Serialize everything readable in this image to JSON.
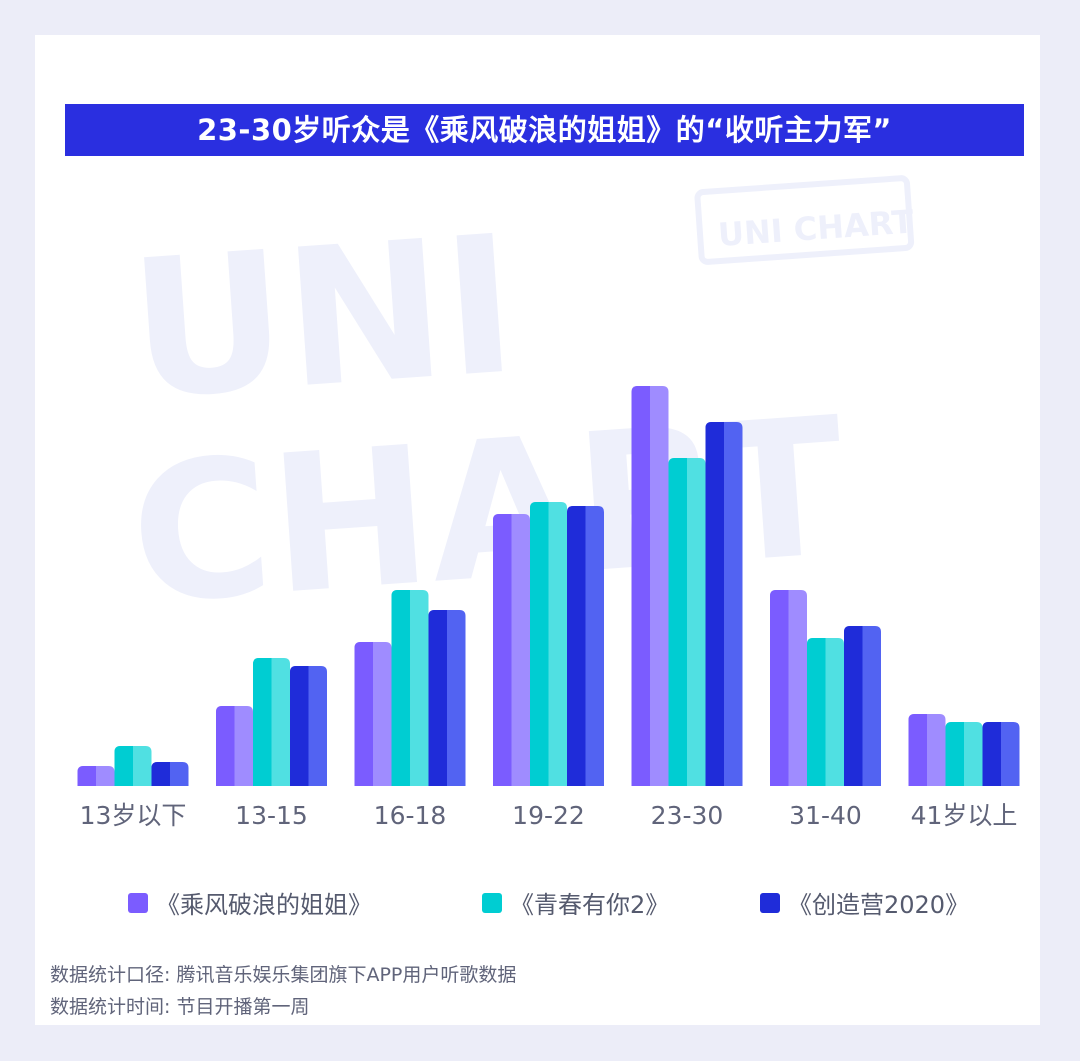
{
  "title": "23-30岁听众是《乘风破浪的姐姐》的“收听主力军”",
  "watermark": {
    "line1": "UNI",
    "line2": "CHART",
    "stamp": "UNI CHART"
  },
  "notes": [
    "数据统计口径: 腾讯音乐娱乐集团旗下APP用户听歌数据",
    "数据统计时间: 节目开播第一周"
  ],
  "colors": {
    "accent": "#2a2fe0"
  },
  "chart_data": {
    "type": "bar",
    "title": "23-30岁听众是《乘风破浪的姐姐》的“收听主力军”",
    "xlabel": "",
    "ylabel": "",
    "ylim": [
      0,
      100
    ],
    "grid": false,
    "legend_position": "bottom",
    "categories": [
      "13岁以下",
      "13-15",
      "16-18",
      "19-22",
      "23-30",
      "31-40",
      "41岁以上"
    ],
    "series": [
      {
        "name": "《乘风破浪的姐姐》",
        "color": "#7b5cff",
        "light": "#9f8cff",
        "values": [
          5,
          20,
          36,
          68,
          100,
          49,
          18
        ]
      },
      {
        "name": "《青春有你2》",
        "color": "#00cdd2",
        "light": "#50e0e2",
        "values": [
          10,
          32,
          49,
          71,
          82,
          37,
          16
        ]
      },
      {
        "name": "《创造营2020》",
        "color": "#1f2cd9",
        "light": "#5263f2",
        "values": [
          6,
          30,
          44,
          70,
          91,
          40,
          16
        ]
      }
    ]
  }
}
